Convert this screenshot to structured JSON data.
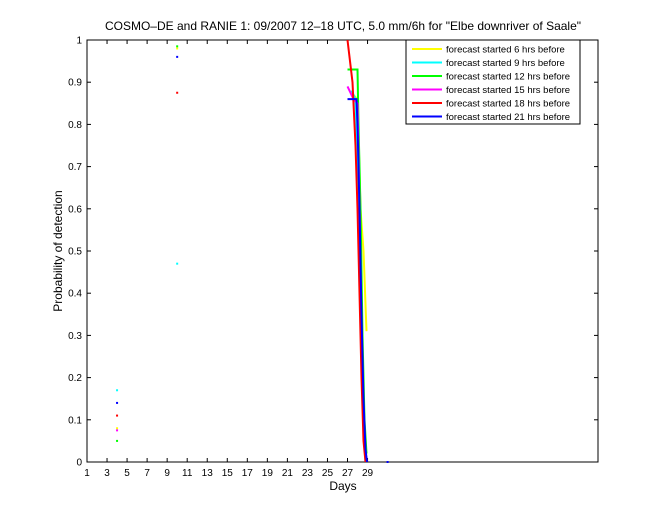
{
  "chart_data": {
    "type": "line",
    "title": "COSMO–DE and RANIE 1: 09/2007 12–18 UTC, 5.0 mm/6h for \"Elbe downriver of Saale\"",
    "xlabel": "Days",
    "ylabel": "Probability of detection",
    "xlim": [
      1,
      52
    ],
    "ylim": [
      0,
      1
    ],
    "x_ticks": [
      1,
      3,
      5,
      7,
      9,
      11,
      13,
      15,
      17,
      19,
      21,
      23,
      25,
      27,
      29
    ],
    "y_ticks": [
      0,
      0.1,
      0.2,
      0.3,
      0.4,
      0.5,
      0.6,
      0.7,
      0.8,
      0.9,
      1
    ],
    "y_tick_labels": [
      "0",
      "0.1",
      "0.2",
      "0.3",
      "0.4",
      "0.5",
      "0.6",
      "0.7",
      "0.8",
      "0.9",
      "1"
    ],
    "grid": false,
    "legend_position": "top-right",
    "series": [
      {
        "name": "forecast started 6 hrs before",
        "color": "#ffff00",
        "points": [
          [
            4,
            0.08
          ],
          [
            10,
            0.98
          ]
        ],
        "line": [
          [
            27.6,
            0.87
          ],
          [
            28.0,
            0.86
          ],
          [
            28.3,
            0.6
          ],
          [
            28.6,
            0.5
          ],
          [
            28.9,
            0.31
          ]
        ]
      },
      {
        "name": "forecast started 9 hrs before",
        "color": "#00ffff",
        "points": [
          [
            4,
            0.17
          ],
          [
            10,
            0.47
          ]
        ],
        "line": [
          [
            27.4,
            0.88
          ],
          [
            27.8,
            0.86
          ],
          [
            28.0,
            0.7
          ],
          [
            28.2,
            0.55
          ],
          [
            28.4,
            0.3
          ],
          [
            28.6,
            0.1
          ],
          [
            28.8,
            0.0
          ]
        ]
      },
      {
        "name": "forecast started 12 hrs before",
        "color": "#00ff00",
        "points": [
          [
            4,
            0.05
          ],
          [
            10,
            0.985
          ]
        ],
        "line": [
          [
            27.0,
            0.93
          ],
          [
            28.0,
            0.93
          ],
          [
            28.1,
            0.8
          ],
          [
            28.3,
            0.6
          ],
          [
            28.5,
            0.3
          ],
          [
            28.7,
            0.1
          ],
          [
            28.9,
            0.02
          ]
        ]
      },
      {
        "name": "forecast started 15 hrs before",
        "color": "#ff00ff",
        "points": [
          [
            4,
            0.075
          ]
        ],
        "line": [
          [
            27.0,
            0.89
          ],
          [
            27.6,
            0.86
          ],
          [
            28.0,
            0.85
          ],
          [
            28.2,
            0.6
          ],
          [
            28.4,
            0.3
          ],
          [
            28.6,
            0.1
          ],
          [
            28.8,
            0.01
          ]
        ]
      },
      {
        "name": "forecast started 18 hrs before",
        "color": "#ff0000",
        "points": [
          [
            4,
            0.11
          ],
          [
            10,
            0.875
          ]
        ],
        "line": [
          [
            27.0,
            1.0
          ],
          [
            27.5,
            0.9
          ],
          [
            27.8,
            0.75
          ],
          [
            28.0,
            0.6
          ],
          [
            28.2,
            0.4
          ],
          [
            28.4,
            0.2
          ],
          [
            28.6,
            0.05
          ],
          [
            28.8,
            0.0
          ]
        ]
      },
      {
        "name": "forecast started 21 hrs before",
        "color": "#0000ff",
        "points": [
          [
            4,
            0.14
          ],
          [
            10,
            0.96
          ],
          [
            31,
            0.0
          ]
        ],
        "line": [
          [
            27.0,
            0.86
          ],
          [
            27.9,
            0.86
          ],
          [
            28.0,
            0.8
          ],
          [
            28.2,
            0.6
          ],
          [
            28.4,
            0.35
          ],
          [
            28.6,
            0.15
          ],
          [
            28.8,
            0.03
          ],
          [
            28.95,
            0.0
          ]
        ]
      }
    ]
  }
}
